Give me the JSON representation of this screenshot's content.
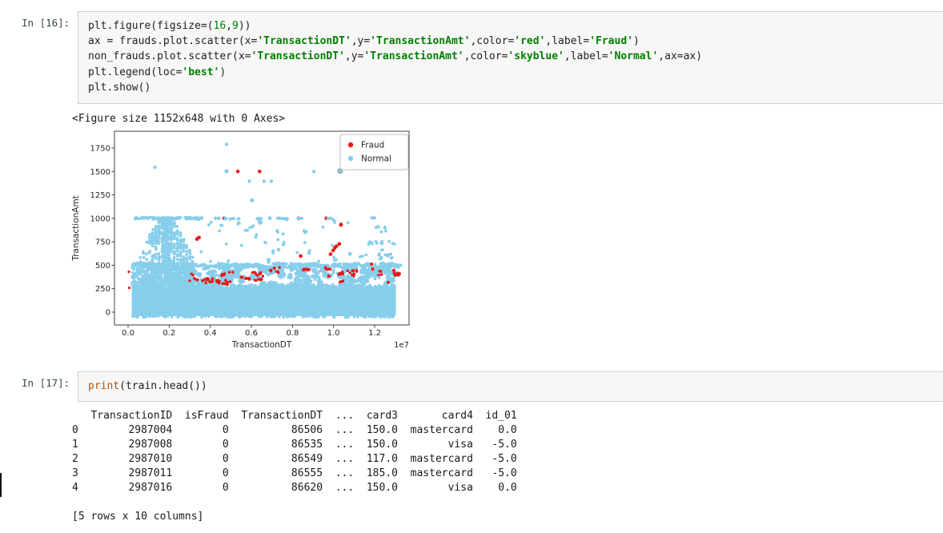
{
  "cells": [
    {
      "prompt": "In [16]:",
      "code_tokens": [
        [
          [
            "p",
            "plt.figure(figsize=("
          ],
          [
            "n",
            "16"
          ],
          [
            "p",
            ","
          ],
          [
            "n",
            "9"
          ],
          [
            "p",
            "))"
          ]
        ],
        [
          [
            "p",
            "ax = frauds.plot.scatter(x="
          ],
          [
            "s",
            "'TransactionDT'"
          ],
          [
            "p",
            ",y="
          ],
          [
            "s",
            "'TransactionAmt'"
          ],
          [
            "p",
            ",color="
          ],
          [
            "s",
            "'red'"
          ],
          [
            "p",
            ",label="
          ],
          [
            "s",
            "'Fraud'"
          ],
          [
            "p",
            ")"
          ]
        ],
        [
          [
            "p",
            "non_frauds.plot.scatter(x="
          ],
          [
            "s",
            "'TransactionDT'"
          ],
          [
            "p",
            ",y="
          ],
          [
            "s",
            "'TransactionAmt'"
          ],
          [
            "p",
            ",color="
          ],
          [
            "s",
            "'skyblue'"
          ],
          [
            "p",
            ",label="
          ],
          [
            "s",
            "'Normal'"
          ],
          [
            "p",
            ",ax=ax)"
          ]
        ],
        [
          [
            "p",
            "plt.legend(loc="
          ],
          [
            "s",
            "'best'"
          ],
          [
            "p",
            ")"
          ]
        ],
        [
          [
            "p",
            "plt.show()"
          ]
        ]
      ],
      "text_output": "<Figure size 1152x648 with 0 Axes>"
    },
    {
      "prompt": "In [17]:",
      "code_tokens": [
        [
          [
            "b",
            "print"
          ],
          [
            "p",
            "(train.head())"
          ]
        ]
      ],
      "table_lines": [
        "   TransactionID  isFraud  TransactionDT  ...  card3       card4  id_01",
        "0        2987004        0          86506  ...  150.0  mastercard    0.0",
        "1        2987008        0          86535  ...  150.0        visa   -5.0",
        "2        2987010        0          86549  ...  117.0  mastercard   -5.0",
        "3        2987011        0          86555  ...  185.0  mastercard   -5.0",
        "4        2987016        0          86620  ...  150.0        visa    0.0",
        "",
        "[5 rows x 10 columns]"
      ]
    }
  ],
  "chart_data": {
    "type": "scatter",
    "title": "",
    "xlabel": "TransactionDT",
    "ylabel": "TransactionAmt",
    "offset_text": "1e7",
    "x_unit": 10000000,
    "xlim": [
      -0.0662,
      1.3673
    ],
    "ylim": [
      -137,
      1929
    ],
    "xticks": {
      "values": [
        0.0,
        0.2,
        0.4,
        0.6,
        0.8,
        1.0,
        1.2
      ],
      "labels": [
        "0.0",
        "0.2",
        "0.4",
        "0.6",
        "0.8",
        "1.0",
        "1.2"
      ]
    },
    "yticks": {
      "values": [
        0,
        250,
        500,
        750,
        1000,
        1250,
        1500,
        1750
      ],
      "labels": [
        "0",
        "250",
        "500",
        "750",
        "1000",
        "1250",
        "1500",
        "1750"
      ]
    },
    "grid": false,
    "legend": {
      "location": "upper right",
      "entries": [
        {
          "label": "Fraud",
          "color": "#e81717"
        },
        {
          "label": "Normal",
          "color": "#87CEEB"
        }
      ]
    },
    "series_colors": {
      "Fraud": "#e81717",
      "Normal": "#87CEEB"
    },
    "layers": [
      {
        "series": "Normal",
        "type": "rect",
        "x": [
          0.018,
          1.303
        ],
        "y": [
          -43,
          268
        ]
      },
      {
        "series": "Normal",
        "type": "uniform",
        "x": [
          0.018,
          1.303
        ],
        "y": [
          256,
          292
        ],
        "n": 300,
        "r": 1.9
      },
      {
        "series": "Normal",
        "type": "uniform",
        "x": [
          0.02,
          1.3
        ],
        "y": [
          -56,
          -40
        ],
        "n": 130,
        "r": 1.8
      },
      {
        "series": "Normal",
        "type": "clusters",
        "x": [
          0.025,
          1.31
        ],
        "y": [
          288,
          478
        ],
        "n": 1250,
        "clusters": 150,
        "sx": 0.016,
        "sy": 26,
        "r": 1.9
      },
      {
        "series": "Normal",
        "type": "clusters",
        "x": [
          0.02,
          1.315
        ],
        "y": [
          478,
          516
        ],
        "n": 650,
        "clusters": 120,
        "sx": 0.02,
        "sy": 8,
        "r": 1.9
      },
      {
        "series": "Normal",
        "type": "uniform",
        "x": [
          0.02,
          0.32
        ],
        "y": [
          270,
          515
        ],
        "n": 450,
        "r": 1.9
      },
      {
        "series": "Fraud",
        "type": "clusters",
        "x": [
          0.28,
          1.32
        ],
        "y": [
          300,
          470
        ],
        "n": 120,
        "clusters": 32,
        "sx": 0.018,
        "sy": 13,
        "r": 1.7
      },
      {
        "series": "Fraud",
        "type": "clusters",
        "x": [
          0.3,
          0.66
        ],
        "y": [
          336,
          362
        ],
        "n": 26,
        "clusters": 9,
        "sx": 0.022,
        "sy": 6,
        "r": 1.7
      },
      {
        "series": "Fraud",
        "type": "points",
        "pts": [
          [
            0.534,
            1500,
            2.3
          ],
          [
            0.64,
            1500,
            2.3
          ],
          [
            0.467,
            1000,
            2.3
          ],
          [
            0.83,
            1000,
            2.3
          ],
          [
            0.965,
            1000,
            2.3
          ],
          [
            1.036,
            932,
            2.5
          ],
          [
            0.345,
            795,
            2.3
          ],
          [
            0.335,
            778,
            2.3
          ],
          [
            0.985,
            618,
            2.3
          ],
          [
            0.998,
            658,
            2.3
          ],
          [
            1.006,
            686,
            2.3
          ],
          [
            1.014,
            704,
            2.3
          ],
          [
            1.028,
            727,
            2.3
          ],
          [
            0.84,
            598,
            2.3
          ],
          [
            1.185,
            512,
            2.0
          ],
          [
            0.004,
            430,
            1.6
          ],
          [
            0.006,
            258,
            1.6
          ],
          [
            1.266,
            318,
            2.0
          ],
          [
            1.293,
            445,
            2.0
          ],
          [
            1.19,
            460,
            2.0
          ]
        ]
      },
      {
        "series": "Normal",
        "type": "triangle",
        "cx": 0.185,
        "half": 0.15,
        "y": [
          500,
          1005
        ],
        "n": 360,
        "r": 1.9,
        "stripe": 0.015
      },
      {
        "series": "Normal",
        "type": "uniform",
        "x": [
          0.168,
          0.206
        ],
        "y": [
          500,
          1012
        ],
        "n": 110,
        "r": 1.9
      },
      {
        "series": "Normal",
        "type": "uniform",
        "x": [
          0.02,
          0.36
        ],
        "y": [
          992,
          1010
        ],
        "n": 85,
        "r": 1.9
      },
      {
        "series": "Normal",
        "type": "clusters",
        "x": [
          0.4,
          1.315
        ],
        "y": [
          995,
          1006
        ],
        "n": 55,
        "clusters": 14,
        "sx": 0.012,
        "sy": 3,
        "r": 1.9
      },
      {
        "series": "Normal",
        "type": "clusters",
        "x": [
          0.34,
          1.315
        ],
        "y": [
          530,
          985
        ],
        "n": 100,
        "clusters": 50,
        "sx": 0.008,
        "sy": 22,
        "r": 1.9
      },
      {
        "series": "Normal",
        "type": "uniform",
        "x": [
          1.13,
          1.31
        ],
        "y": [
          722,
          762
        ],
        "n": 10,
        "r": 1.9
      },
      {
        "series": "Normal",
        "type": "uniform",
        "x": [
          1.12,
          1.31
        ],
        "y": [
          578,
          622
        ],
        "n": 9,
        "r": 1.9
      },
      {
        "series": "Normal",
        "type": "points",
        "pts": [
          [
            0.13,
            1545,
            2.2
          ],
          [
            0.479,
            1790,
            2.2
          ],
          [
            0.479,
            1502,
            2.6
          ],
          [
            0.904,
            1500,
            2.2
          ],
          [
            0.59,
            1395,
            2.2
          ],
          [
            0.662,
            1395,
            2.2
          ],
          [
            0.697,
            1395,
            2.2
          ],
          [
            0.604,
            1192,
            2.6
          ],
          [
            0.425,
            1000,
            2.2
          ],
          [
            0.442,
            1000,
            2.2
          ],
          [
            0.498,
            993,
            2.2
          ],
          [
            0.69,
            1000,
            2.2
          ],
          [
            0.772,
            988,
            2.2
          ],
          [
            1.032,
            1505,
            2.8,
            "ring"
          ]
        ]
      }
    ]
  }
}
